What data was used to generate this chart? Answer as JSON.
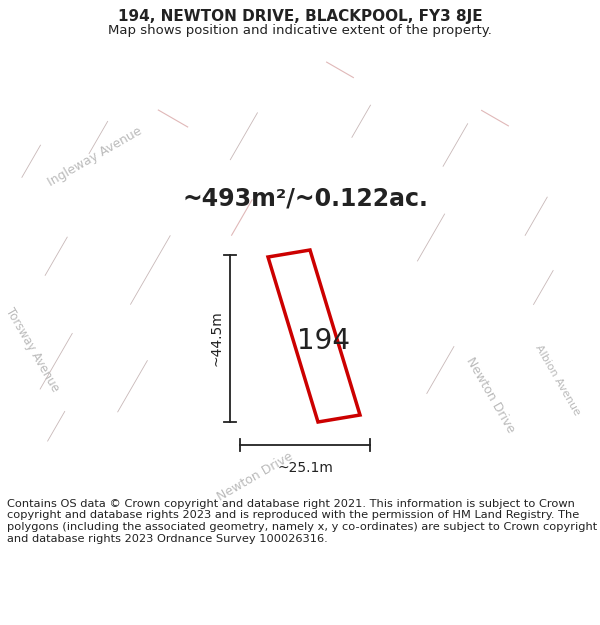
{
  "title": "194, NEWTON DRIVE, BLACKPOOL, FY3 8JE",
  "subtitle": "Map shows position and indicative extent of the property.",
  "area_label": "~493m²/~0.122ac.",
  "dim_width": "~25.1m",
  "dim_height": "~44.5m",
  "plot_label": "194",
  "copyright_text": "Contains OS data © Crown copyright and database right 2021. This information is subject to Crown copyright and database rights 2023 and is reproduced with the permission of HM Land Registry. The polygons (including the associated geometry, namely x, y co-ordinates) are subject to Crown copyright and database rights 2023 Ordnance Survey 100026316.",
  "bg_color": "#ffffff",
  "map_bg": "#f5eeee",
  "road_fill": "#ede6e6",
  "block_fill": "#ddd5d5",
  "road_edge": "#e0b8b8",
  "plot_color": "#cc0000",
  "dim_color": "#222222",
  "text_color": "#222222",
  "street_label_color": "#bbbbbb",
  "title_fontsize": 11,
  "subtitle_fontsize": 9.5,
  "area_fontsize": 17,
  "plot_label_fontsize": 20,
  "dim_fontsize": 10,
  "street_fontsize": 9,
  "copyright_fontsize": 8.2
}
